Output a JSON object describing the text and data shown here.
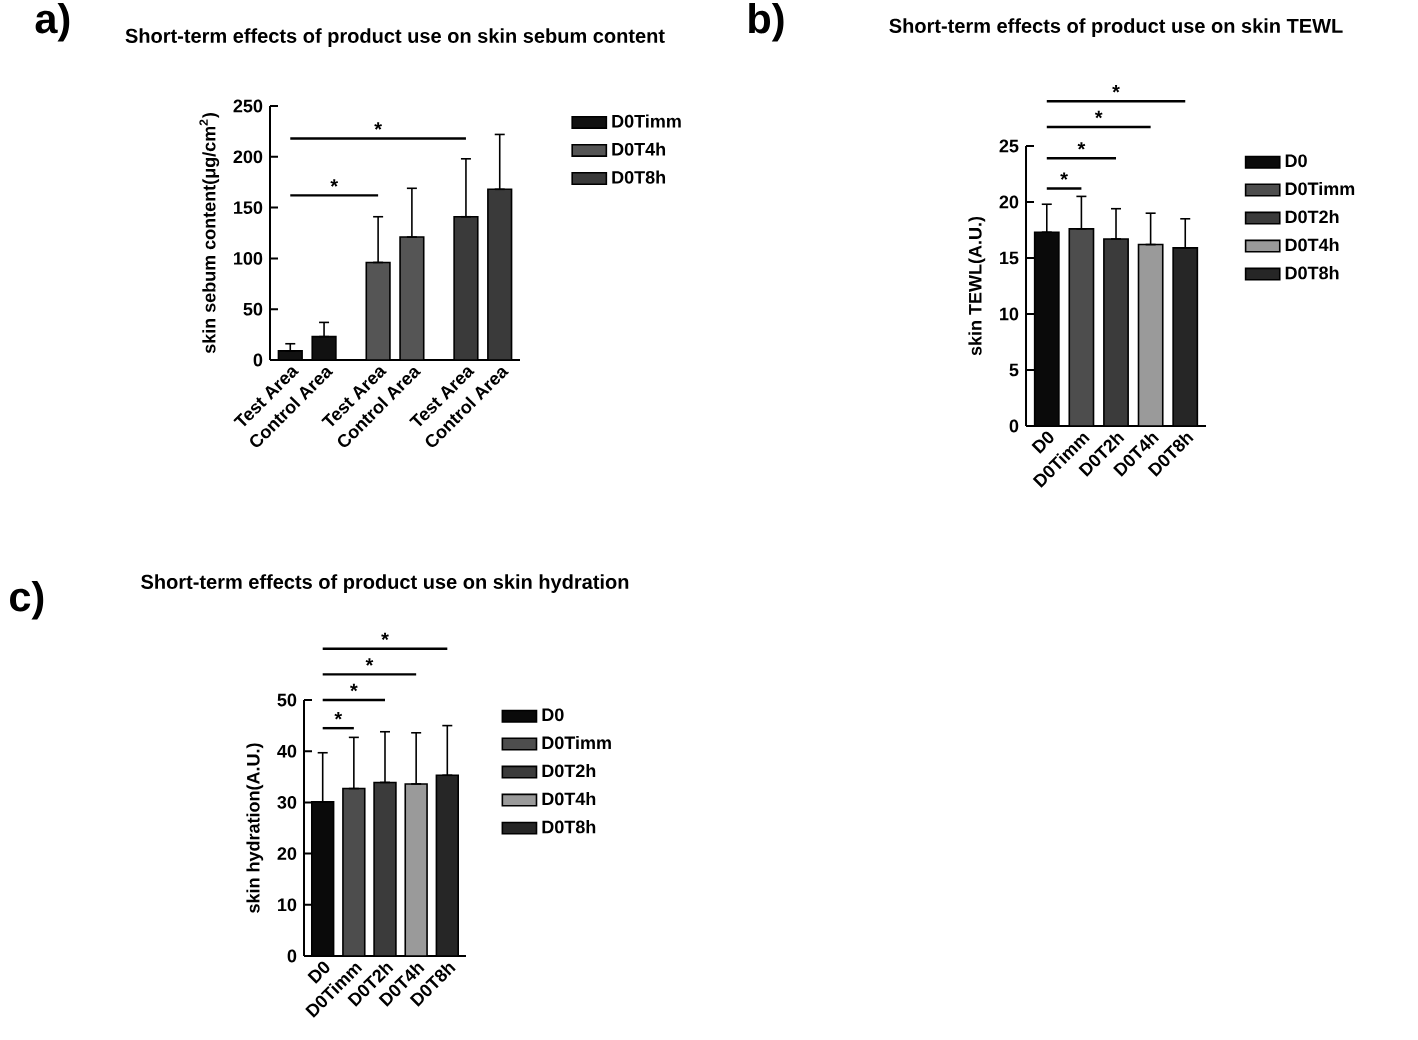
{
  "chart_data": [
    {
      "type": "bar",
      "title": "Short-term effects of product use on skin sebum content",
      "ylabel": "skin sebum content(μg/cm$^{2}$)",
      "categories": [
        "Test Area",
        "Control Area",
        "Test Area",
        "Control Area",
        "Test Area",
        "Control Area"
      ],
      "series": [
        {
          "name": "D0Timm",
          "color": "#111111",
          "values": [
            9,
            23,
            null,
            null,
            null,
            null
          ],
          "errors": [
            [
              9,
              16
            ],
            [
              23,
              37
            ],
            null,
            null,
            null,
            null
          ]
        },
        {
          "name": "D0T4h",
          "color": "#555555",
          "values": [
            null,
            null,
            96,
            121,
            null,
            null
          ],
          "errors": [
            null,
            null,
            [
              96,
              141
            ],
            [
              121,
              169
            ],
            null,
            null
          ]
        },
        {
          "name": "D0T8h",
          "color": "#3a3a3a",
          "values": [
            null,
            null,
            null,
            null,
            141,
            168
          ],
          "errors": [
            null,
            null,
            null,
            null,
            [
              141,
              198
            ],
            [
              168,
              222
            ]
          ]
        }
      ],
      "ylim": [
        0,
        250
      ],
      "yticks": [
        0,
        50,
        100,
        150,
        200,
        250
      ],
      "legend": "right",
      "annotations": [
        "a)",
        "*",
        "*"
      ]
    },
    {
      "type": "bar",
      "title": "Short-term effects of product use on skin TEWL",
      "ylabel": "skin TEWL(A.U.)",
      "categories": [
        "D0",
        "D0Timm",
        "D0T2h",
        "D0T4h",
        "D0T8h"
      ],
      "series": [
        {
          "name": "D0",
          "color": "#0a0a0a",
          "values": [
            17.3,
            null,
            null,
            null,
            null
          ],
          "errors": [
            [
              17.3,
              19.8
            ],
            null,
            null,
            null,
            null
          ]
        },
        {
          "name": "D0Timm",
          "color": "#4d4d4d",
          "values": [
            null,
            17.6,
            null,
            null,
            null
          ],
          "errors": [
            null,
            [
              17.6,
              20.5
            ],
            null,
            null,
            null
          ]
        },
        {
          "name": "D0T2h",
          "color": "#3b3b3b",
          "values": [
            null,
            null,
            16.7,
            null,
            null
          ],
          "errors": [
            null,
            null,
            [
              16.7,
              19.4
            ],
            null,
            null
          ]
        },
        {
          "name": "D0T4h",
          "color": "#9a9a9a",
          "values": [
            null,
            null,
            null,
            16.2,
            null
          ],
          "errors": [
            null,
            null,
            null,
            [
              16.2,
              19.0
            ],
            null
          ]
        },
        {
          "name": "D0T8h",
          "color": "#262626",
          "values": [
            null,
            null,
            null,
            null,
            15.9
          ],
          "errors": [
            null,
            null,
            null,
            null,
            [
              15.9,
              18.5
            ]
          ]
        }
      ],
      "ylim": [
        0,
        25
      ],
      "yticks": [
        0,
        5,
        10,
        15,
        20,
        25
      ],
      "legend": "right",
      "annotations": [
        "b)",
        "*",
        "*",
        "*",
        "*"
      ]
    },
    {
      "type": "bar",
      "title": "Short-term effects of product use on skin hydration",
      "ylabel": "skin hydration(A.U.)",
      "categories": [
        "D0",
        "D0Timm",
        "D0T2h",
        "D0T4h",
        "D0T8h"
      ],
      "series": [
        {
          "name": "D0",
          "color": "#0a0a0a",
          "values": [
            30.1,
            null,
            null,
            null,
            null
          ],
          "errors": [
            [
              30.1,
              39.7
            ],
            null,
            null,
            null,
            null
          ]
        },
        {
          "name": "D0Timm",
          "color": "#4d4d4d",
          "values": [
            null,
            32.7,
            null,
            null,
            null
          ],
          "errors": [
            null,
            [
              32.7,
              42.7
            ],
            null,
            null,
            null
          ]
        },
        {
          "name": "D0T2h",
          "color": "#3b3b3b",
          "values": [
            null,
            null,
            33.9,
            null,
            null
          ],
          "errors": [
            null,
            null,
            [
              33.9,
              43.8
            ],
            null,
            null
          ]
        },
        {
          "name": "D0T4h",
          "color": "#9a9a9a",
          "values": [
            null,
            null,
            null,
            33.6,
            null
          ],
          "errors": [
            null,
            null,
            null,
            [
              33.6,
              43.6
            ],
            null
          ]
        },
        {
          "name": "D0T8h",
          "color": "#262626",
          "values": [
            null,
            null,
            null,
            null,
            35.3
          ],
          "errors": [
            null,
            null,
            null,
            null,
            [
              35.3,
              45.0
            ]
          ]
        }
      ],
      "ylim": [
        0,
        50
      ],
      "yticks": [
        0,
        10,
        20,
        30,
        40,
        50
      ],
      "legend": "right",
      "annotations": [
        "c)",
        "*",
        "*",
        "*",
        "*"
      ]
    }
  ]
}
